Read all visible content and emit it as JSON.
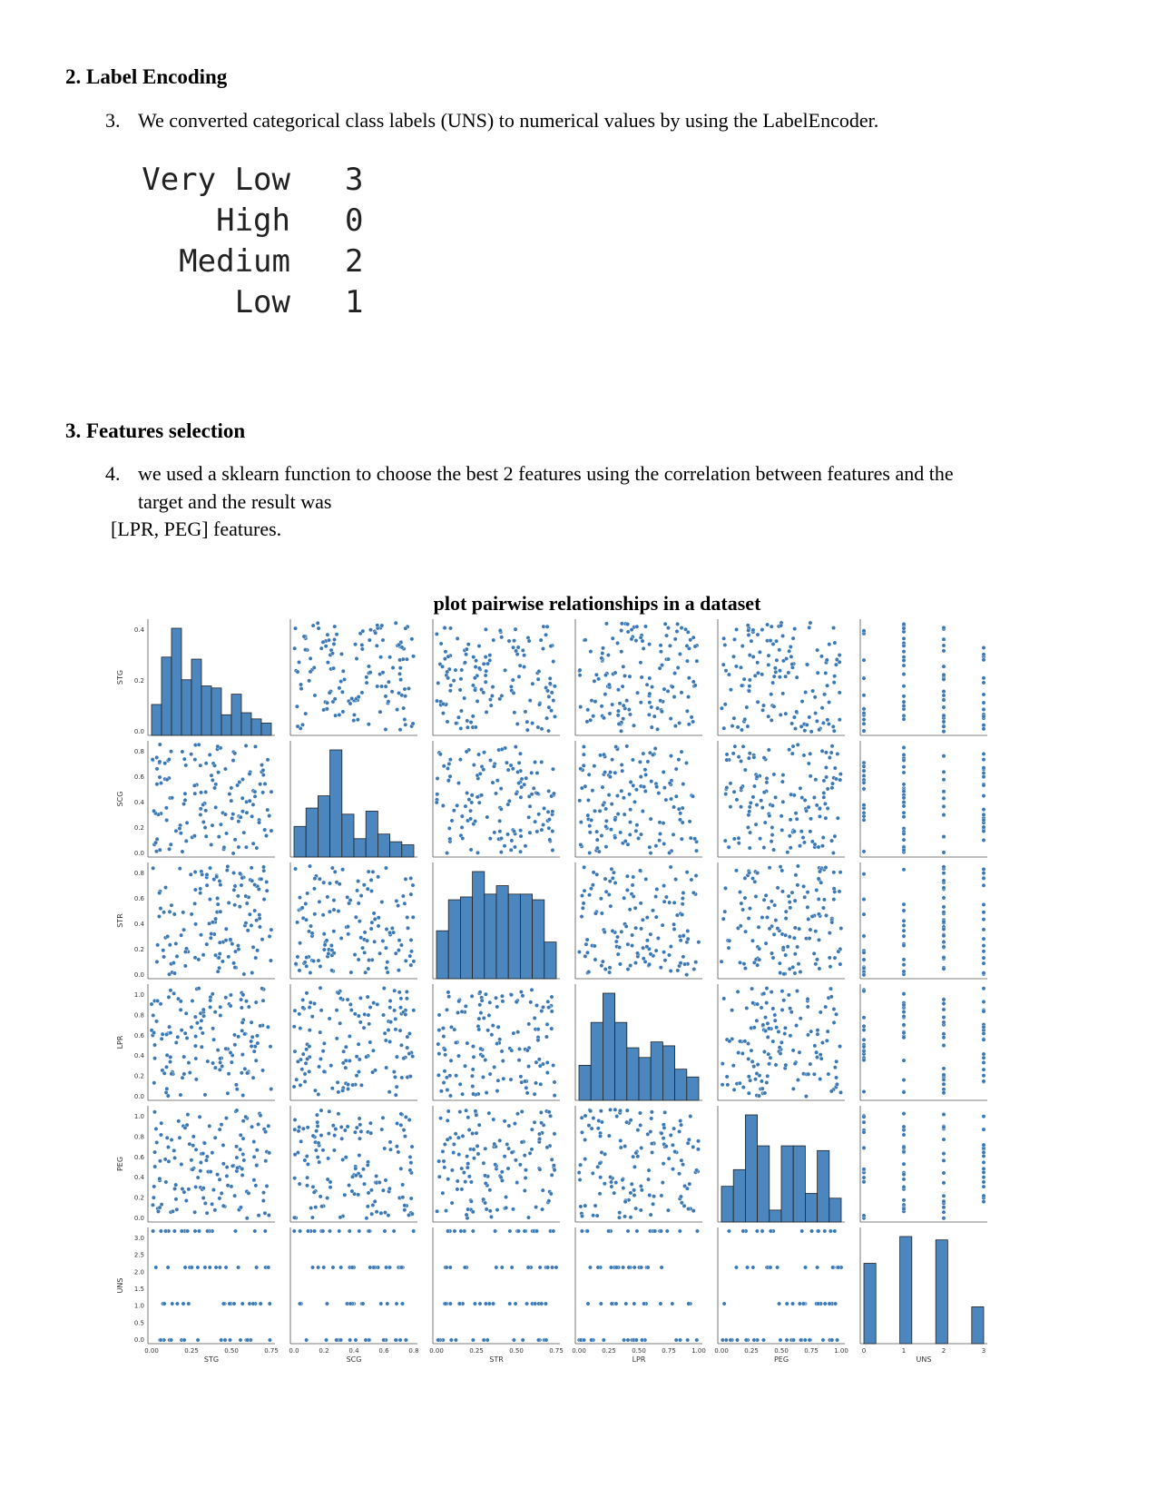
{
  "section_label_encoding": {
    "heading": "2. Label Encoding",
    "item_number": "3.",
    "item_text": "We converted categorical class labels (UNS) to numerical values by using the LabelEncoder.",
    "encodings": [
      {
        "label": "Very Low",
        "code": "3"
      },
      {
        "label": "High",
        "code": "0"
      },
      {
        "label": "Medium",
        "code": "2"
      },
      {
        "label": "Low",
        "code": "1"
      }
    ]
  },
  "section_features": {
    "heading": "3. Features selection",
    "item_number": "4.",
    "item_line1": "we used a sklearn function to choose the best 2 features using the correlation between features and the",
    "item_line2": "target and the result was",
    "item_line3": "[LPR, PEG] features."
  },
  "figure": {
    "title": "plot pairwise relationships in a dataset"
  },
  "chart_data": {
    "type": "scatter",
    "variables": [
      "STG",
      "SCG",
      "STR",
      "LPR",
      "PEG",
      "UNS"
    ],
    "y_ticks": {
      "STG": [
        "0.0",
        "0.2",
        "0.4"
      ],
      "SCG": [
        "0.0",
        "0.2",
        "0.4",
        "0.6",
        "0.8"
      ],
      "STR": [
        "0.0",
        "0.2",
        "0.4",
        "0.6",
        "0.8"
      ],
      "LPR": [
        "0.0",
        "0.2",
        "0.4",
        "0.6",
        "0.8",
        "1.0"
      ],
      "PEG": [
        "0.0",
        "0.2",
        "0.4",
        "0.6",
        "0.8",
        "1.0"
      ],
      "UNS": [
        "0.0",
        "0.5",
        "1.0",
        "1.5",
        "2.0",
        "2.5",
        "3.0"
      ]
    },
    "x_ticks": {
      "STG": [
        "0.00",
        "0.25",
        "0.50",
        "0.75"
      ],
      "SCG": [
        "0.0",
        "0.2",
        "0.4",
        "0.6",
        "0.8"
      ],
      "STR": [
        "0.00",
        "0.25",
        "0.50",
        "0.75"
      ],
      "LPR": [
        "0.00",
        "0.25",
        "0.50",
        "0.75",
        "1.00"
      ],
      "PEG": [
        "0.00",
        "0.25",
        "0.50",
        "0.75",
        "1.00"
      ],
      "UNS": [
        "0",
        "1",
        "2",
        "3"
      ]
    },
    "ranges": {
      "STG": [
        0,
        1
      ],
      "SCG": [
        0,
        0.9
      ],
      "STR": [
        0,
        0.95
      ],
      "LPR": [
        0,
        1
      ],
      "PEG": [
        0,
        1
      ],
      "UNS": [
        0,
        3
      ]
    },
    "diagonal_histograms": {
      "STG": [
        0.15,
        0.38,
        0.52,
        0.27,
        0.37,
        0.24,
        0.23,
        0.1,
        0.2,
        0.11,
        0.08,
        0.06
      ],
      "SCG": [
        0.2,
        0.32,
        0.4,
        0.7,
        0.28,
        0.12,
        0.3,
        0.15,
        0.1,
        0.08
      ],
      "STR": [
        0.17,
        0.28,
        0.29,
        0.38,
        0.3,
        0.33,
        0.3,
        0.3,
        0.28,
        0.13
      ],
      "LPR": [
        0.18,
        0.4,
        0.55,
        0.4,
        0.27,
        0.22,
        0.3,
        0.28,
        0.16,
        0.12
      ],
      "PEG": [
        0.15,
        0.22,
        0.45,
        0.32,
        0.05,
        0.32,
        0.32,
        0.12,
        0.3,
        0.1
      ],
      "UNS": [
        0.24,
        0.0,
        0.0,
        0.32,
        0.0,
        0.0,
        0.31,
        0.0,
        0.0,
        0.11
      ]
    },
    "colors": {
      "points": "#3a78b5",
      "bars": "#4b86bf"
    },
    "grid": false
  }
}
